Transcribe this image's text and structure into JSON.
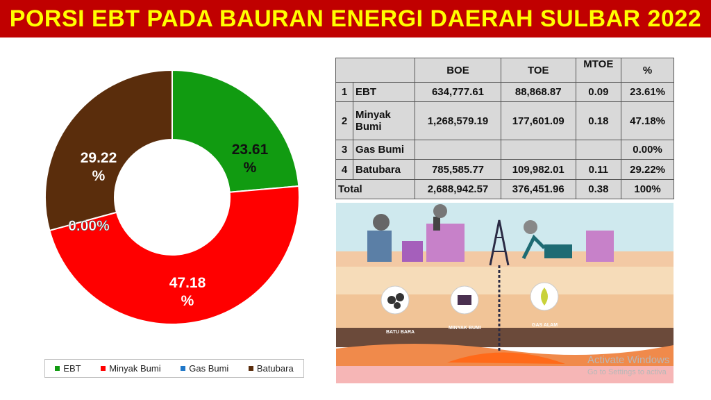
{
  "title": "PORSI EBT PADA BAURAN ENERGI DAERAH SULBAR 2022",
  "chart_data": {
    "type": "pie",
    "title": "",
    "categories": [
      "EBT",
      "Minyak Bumi",
      "Gas Bumi",
      "Batubara"
    ],
    "values": [
      23.61,
      47.18,
      0.0,
      29.22
    ],
    "labels": [
      "23.61\n%",
      "47.18\n%",
      "0.00%",
      "29.22\n%"
    ],
    "colors": [
      "#119b11",
      "#ff0000",
      "#1f77c8",
      "#5a2d0c"
    ],
    "donut": true,
    "legend_position": "bottom"
  },
  "table": {
    "headers": [
      "",
      "",
      "BOE",
      "TOE",
      "MTOE",
      "%"
    ],
    "rows": [
      {
        "no": "1",
        "name": "EBT",
        "boe": "634,777.61",
        "toe": "88,868.87",
        "mtoe": "0.09",
        "pct": "23.61%"
      },
      {
        "no": "2",
        "name": "Minyak Bumi",
        "boe": "1,268,579.19",
        "toe": "177,601.09",
        "mtoe": "0.18",
        "pct": "47.18%"
      },
      {
        "no": "3",
        "name": "Gas Bumi",
        "boe": "",
        "toe": "",
        "mtoe": "",
        "pct": "0.00%"
      },
      {
        "no": "4",
        "name": "Batubara",
        "boe": "785,585.77",
        "toe": "109,982.01",
        "mtoe": "0.11",
        "pct": "29.22%"
      }
    ],
    "total": {
      "label": "Total",
      "boe": "2,688,942.57",
      "toe": "376,451.96",
      "mtoe": "0.38",
      "pct": "100%"
    }
  },
  "illustration": {
    "labels": [
      "BATU BARA",
      "MINYAK BUMI",
      "GAS ALAM"
    ]
  },
  "watermark": {
    "line1": "Activate Windows",
    "line2": "Go to Settings to activa"
  }
}
